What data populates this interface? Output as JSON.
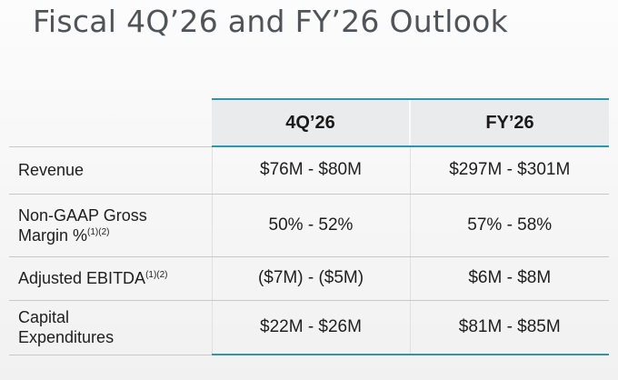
{
  "title": "Fiscal 4Q’26 and FY’26 Outlook",
  "table": {
    "columns": [
      "",
      "4Q’26",
      "FY’26"
    ],
    "rows": [
      {
        "label_line1": "Revenue",
        "label_line2": "",
        "note": "",
        "q4": "$76M - $80M",
        "fy": "$297M - $301M"
      },
      {
        "label_line1": "Non-GAAP Gross",
        "label_line2": "Margin %",
        "note": "(1)(2)",
        "q4": "50% - 52%",
        "fy": "57% - 58%"
      },
      {
        "label_line1": "Adjusted EBITDA",
        "label_line2": "",
        "note": "(1)(2)",
        "q4": "($7M) - ($5M)",
        "fy": "$6M - $8M"
      },
      {
        "label_line1": "Capital",
        "label_line2": "Expenditures",
        "note": "",
        "q4": "$22M - $26M",
        "fy": "$81M - $85M"
      }
    ]
  },
  "colors": {
    "accent_teal": "#2f96a9",
    "header_fill": "#e9ebed",
    "title_gray": "#505357"
  }
}
